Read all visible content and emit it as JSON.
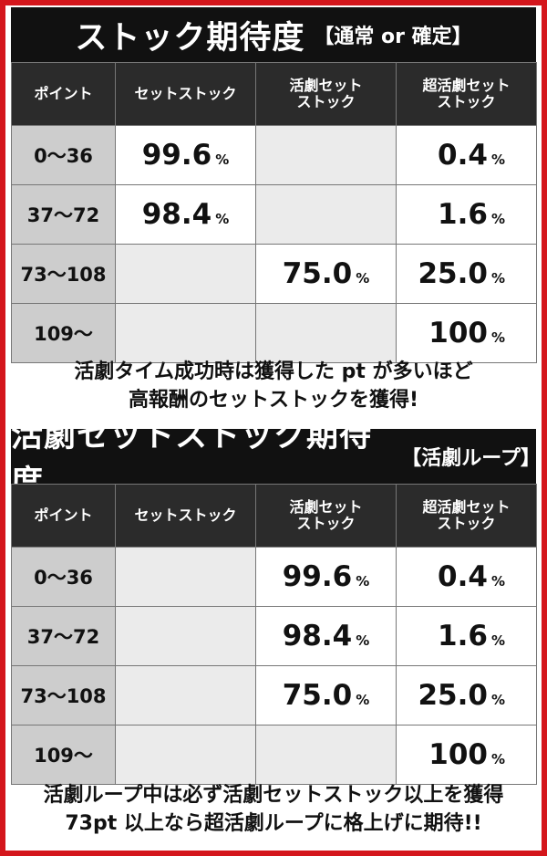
{
  "section1": {
    "title": "ストック期待度",
    "subtitle": "【通常 or 確定】",
    "headers": [
      "ポイント",
      "セットストック",
      "活劇セット\nストック",
      "超活劇セット\nストック"
    ],
    "rows": [
      {
        "point": "0〜36",
        "set": "99.6",
        "katsugeki": "",
        "super": "0.4"
      },
      {
        "point": "37〜72",
        "set": "98.4",
        "katsugeki": "",
        "super": "1.6"
      },
      {
        "point": "73〜108",
        "set": "",
        "katsugeki": "75.0",
        "super": "25.0"
      },
      {
        "point": "109〜",
        "set": "",
        "katsugeki": "",
        "super": "100"
      }
    ],
    "note_line1": "活劇タイム成功時は獲得した pt が多いほど",
    "note_line2": "高報酬のセットストックを獲得!"
  },
  "section2": {
    "title": "活劇セットストック期待度",
    "subtitle": "【活劇ループ】",
    "headers": [
      "ポイント",
      "セットストック",
      "活劇セット\nストック",
      "超活劇セット\nストック"
    ],
    "rows": [
      {
        "point": "0〜36",
        "set": "",
        "katsugeki": "99.6",
        "super": "0.4"
      },
      {
        "point": "37〜72",
        "set": "",
        "katsugeki": "98.4",
        "super": "1.6"
      },
      {
        "point": "73〜108",
        "set": "",
        "katsugeki": "75.0",
        "super": "25.0"
      },
      {
        "point": "109〜",
        "set": "",
        "katsugeki": "",
        "super": "100"
      }
    ],
    "note_line1": "活劇ループ中は必ず活劇セットストック以上を獲得",
    "note_line2": "73pt 以上なら超活劇ループに格上げに期待!!"
  },
  "percent_unit": "%",
  "colors": {
    "border": "#d4161c",
    "header_bg": "#2b2b2b",
    "title_bg": "#111111",
    "point_bg": "#cdcdcd",
    "empty_bg": "#ebebeb"
  }
}
